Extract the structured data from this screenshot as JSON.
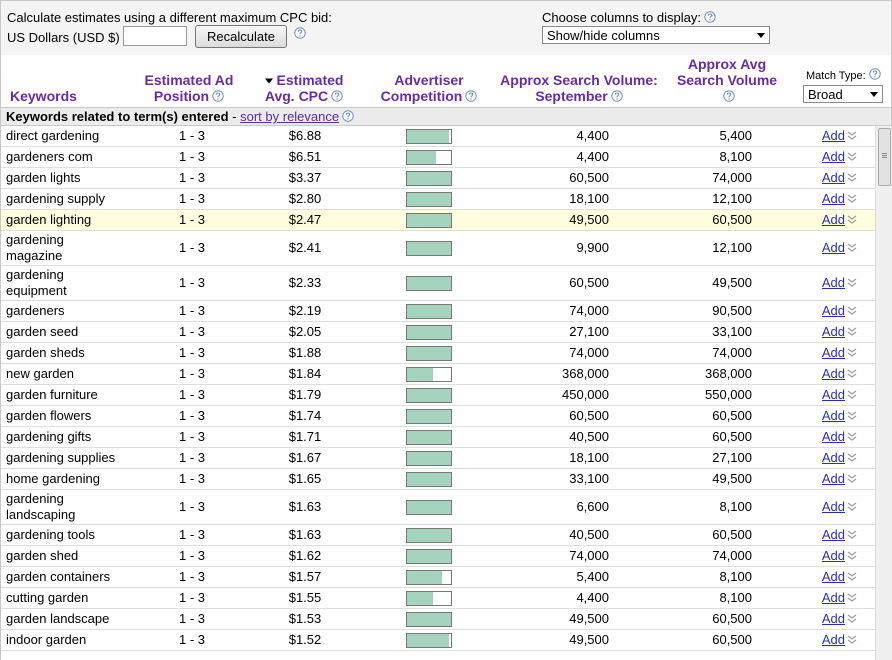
{
  "toolbar": {
    "cpc_label": "Calculate estimates using a different maximum CPC bid:",
    "currency": "US Dollars (USD $)",
    "recalculate": "Recalculate",
    "columns_label": "Choose columns to display:",
    "columns_select": "Show/hide columns"
  },
  "table": {
    "headers": [
      "Keywords",
      "Estimated Ad Position",
      "Estimated Avg. CPC",
      "Advertiser Competition",
      "Approx Search Volume: September",
      "Approx Avg Search Volume"
    ],
    "match_type_label": "Match Type:",
    "match_type": "Broad",
    "section_title": "Keywords related to term(s) entered",
    "section_separator": "-",
    "sort_link": "sort by relevance",
    "add_label": "Add",
    "rows": [
      {
        "keyword": "direct gardening",
        "position": "1 - 3",
        "cpc": "$6.88",
        "competition": 0.95,
        "search_volume": "4,400",
        "avg_volume": "5,400"
      },
      {
        "keyword": "gardeners com",
        "position": "1 - 3",
        "cpc": "$6.51",
        "competition": 0.65,
        "search_volume": "4,400",
        "avg_volume": "8,100"
      },
      {
        "keyword": "garden lights",
        "position": "1 - 3",
        "cpc": "$3.37",
        "competition": 1,
        "search_volume": "60,500",
        "avg_volume": "74,000"
      },
      {
        "keyword": "gardening supply",
        "position": "1 - 3",
        "cpc": "$2.80",
        "competition": 1,
        "search_volume": "18,100",
        "avg_volume": "12,100"
      },
      {
        "keyword": "garden lighting",
        "position": "1 - 3",
        "cpc": "$2.47",
        "competition": 1,
        "search_volume": "49,500",
        "avg_volume": "60,500"
      },
      {
        "keyword": "gardening magazine",
        "position": "1 - 3",
        "cpc": "$2.41",
        "competition": 1,
        "search_volume": "9,900",
        "avg_volume": "12,100"
      },
      {
        "keyword": "gardening equipment",
        "position": "1 - 3",
        "cpc": "$2.33",
        "competition": 1,
        "search_volume": "60,500",
        "avg_volume": "49,500"
      },
      {
        "keyword": "gardeners",
        "position": "1 - 3",
        "cpc": "$2.19",
        "competition": 1,
        "search_volume": "74,000",
        "avg_volume": "90,500"
      },
      {
        "keyword": "garden seed",
        "position": "1 - 3",
        "cpc": "$2.05",
        "competition": 1,
        "search_volume": "27,100",
        "avg_volume": "33,100"
      },
      {
        "keyword": "garden sheds",
        "position": "1 - 3",
        "cpc": "$1.88",
        "competition": 1,
        "search_volume": "74,000",
        "avg_volume": "74,000"
      },
      {
        "keyword": "new garden",
        "position": "1 - 3",
        "cpc": "$1.84",
        "competition": 0.6,
        "search_volume": "368,000",
        "avg_volume": "368,000"
      },
      {
        "keyword": "garden furniture",
        "position": "1 - 3",
        "cpc": "$1.79",
        "competition": 1,
        "search_volume": "450,000",
        "avg_volume": "550,000"
      },
      {
        "keyword": "garden flowers",
        "position": "1 - 3",
        "cpc": "$1.74",
        "competition": 1,
        "search_volume": "60,500",
        "avg_volume": "60,500"
      },
      {
        "keyword": "gardening gifts",
        "position": "1 - 3",
        "cpc": "$1.71",
        "competition": 1,
        "search_volume": "40,500",
        "avg_volume": "60,500"
      },
      {
        "keyword": "gardening supplies",
        "position": "1 - 3",
        "cpc": "$1.67",
        "competition": 1,
        "search_volume": "18,100",
        "avg_volume": "27,100"
      },
      {
        "keyword": "home gardening",
        "position": "1 - 3",
        "cpc": "$1.65",
        "competition": 1,
        "search_volume": "33,100",
        "avg_volume": "49,500"
      },
      {
        "keyword": "gardening landscaping",
        "position": "1 - 3",
        "cpc": "$1.63",
        "competition": 1,
        "search_volume": "6,600",
        "avg_volume": "8,100"
      },
      {
        "keyword": "gardening tools",
        "position": "1 - 3",
        "cpc": "$1.63",
        "competition": 1,
        "search_volume": "40,500",
        "avg_volume": "60,500"
      },
      {
        "keyword": "garden shed",
        "position": "1 - 3",
        "cpc": "$1.62",
        "competition": 1,
        "search_volume": "74,000",
        "avg_volume": "74,000"
      },
      {
        "keyword": "garden containers",
        "position": "1 - 3",
        "cpc": "$1.57",
        "competition": 0.8,
        "search_volume": "5,400",
        "avg_volume": "8,100"
      },
      {
        "keyword": "cutting garden",
        "position": "1 - 3",
        "cpc": "$1.55",
        "competition": 0.6,
        "search_volume": "4,400",
        "avg_volume": "8,100"
      },
      {
        "keyword": "garden landscape",
        "position": "1 - 3",
        "cpc": "$1.53",
        "competition": 1,
        "search_volume": "49,500",
        "avg_volume": "60,500"
      },
      {
        "keyword": "indoor garden",
        "position": "1 - 3",
        "cpc": "$1.52",
        "competition": 0.95,
        "search_volume": "49,500",
        "avg_volume": "60,500"
      }
    ]
  }
}
